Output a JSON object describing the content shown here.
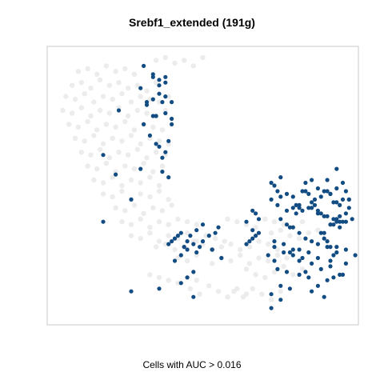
{
  "chart_data": {
    "type": "scatter",
    "title": "Srebf1_extended (191g)",
    "xlabel": "Cells with AUC > 0.016",
    "ylabel": "",
    "xlim": [
      0,
      100
    ],
    "ylim": [
      0,
      100
    ],
    "grid": false,
    "legend": "none",
    "colors": {
      "background_cells": "#e9e9e9",
      "highlighted_cells": "#124c82",
      "frame": "#c9c9c9"
    },
    "series": [
      {
        "name": "",
        "role": "background",
        "x": [
          10,
          13,
          16,
          19,
          22,
          25,
          28,
          8,
          11,
          14,
          17,
          20,
          23,
          26,
          29,
          32,
          35,
          6,
          9,
          12,
          15,
          18,
          21,
          24,
          27,
          30,
          33,
          36,
          39,
          5,
          8,
          11,
          14,
          17,
          20,
          23,
          26,
          29,
          32,
          35,
          38,
          7,
          10,
          13,
          16,
          19,
          22,
          25,
          28,
          31,
          34,
          37,
          9,
          12,
          15,
          18,
          21,
          24,
          27,
          30,
          33,
          36,
          39,
          11,
          14,
          17,
          20,
          23,
          26,
          29,
          32,
          35,
          38,
          13,
          16,
          19,
          22,
          25,
          28,
          31,
          34,
          37,
          15,
          18,
          21,
          24,
          27,
          30,
          33,
          36,
          18,
          21,
          24,
          27,
          30,
          33,
          36,
          39,
          22,
          25,
          28,
          31,
          34,
          37,
          40,
          24,
          27,
          30,
          33,
          36,
          39,
          42,
          45,
          48,
          27,
          30,
          33,
          36,
          39,
          42,
          45,
          48,
          51,
          54,
          57,
          35,
          38,
          41,
          44,
          47,
          50,
          53,
          56,
          59,
          62,
          65,
          68,
          71,
          74,
          42,
          45,
          48,
          53,
          56,
          59,
          62,
          65,
          68,
          71,
          74,
          77,
          58,
          61,
          64,
          67,
          70,
          73,
          76,
          79,
          82,
          64,
          67,
          70,
          73,
          76,
          79,
          82,
          72,
          75,
          78,
          81,
          84,
          87,
          60,
          63,
          66,
          69,
          72,
          75,
          33,
          36,
          39,
          42,
          45,
          48,
          46,
          49,
          52,
          55,
          58,
          61,
          64,
          35,
          38,
          41,
          44,
          47,
          50
        ],
        "y": [
          91,
          92,
          90,
          93,
          91,
          92,
          90,
          86,
          87,
          85,
          88,
          86,
          87,
          85,
          86,
          84,
          87,
          82,
          81,
          83,
          80,
          82,
          81,
          83,
          80,
          82,
          81,
          80,
          82,
          77,
          76,
          78,
          75,
          77,
          76,
          78,
          75,
          77,
          76,
          75,
          77,
          72,
          71,
          73,
          70,
          72,
          71,
          73,
          70,
          72,
          71,
          70,
          67,
          66,
          68,
          65,
          67,
          66,
          68,
          65,
          67,
          66,
          65,
          62,
          61,
          63,
          60,
          62,
          61,
          63,
          60,
          62,
          61,
          57,
          56,
          58,
          55,
          57,
          56,
          58,
          55,
          57,
          52,
          51,
          53,
          50,
          52,
          51,
          53,
          50,
          47,
          46,
          48,
          45,
          47,
          46,
          48,
          45,
          42,
          41,
          43,
          40,
          42,
          41,
          43,
          37,
          36,
          38,
          35,
          37,
          36,
          38,
          37,
          36,
          32,
          31,
          33,
          30,
          32,
          31,
          33,
          30,
          32,
          31,
          30,
          28,
          29,
          27,
          28,
          30,
          29,
          27,
          28,
          29,
          27,
          28,
          30,
          29,
          27,
          24,
          23,
          25,
          22,
          24,
          23,
          25,
          22,
          24,
          23,
          25,
          24,
          38,
          37,
          36,
          35,
          38,
          37,
          36,
          35,
          37,
          20,
          18,
          17,
          19,
          21,
          18,
          20,
          33,
          34,
          32,
          31,
          33,
          34,
          12,
          10,
          13,
          11,
          9,
          12,
          18,
          17,
          16,
          15,
          17,
          16,
          13,
          11,
          14,
          12,
          10,
          13,
          11,
          95,
          96,
          94,
          95,
          93,
          96
        ]
      },
      {
        "name": "",
        "role": "highlighted",
        "x": [
          39,
          40,
          41,
          42,
          43,
          44,
          45,
          46,
          41,
          43,
          45,
          47,
          48,
          49,
          50,
          48,
          50,
          52,
          54,
          55,
          56,
          53,
          53,
          43,
          45,
          47,
          27,
          36,
          47,
          30,
          35,
          18,
          37,
          40,
          27,
          22,
          18,
          23,
          30,
          31,
          34,
          38,
          36,
          34,
          36,
          38,
          32,
          34,
          36,
          38,
          40,
          32,
          34,
          38,
          40,
          31,
          33,
          36,
          38,
          35,
          37,
          39,
          37,
          39,
          64,
          65,
          66,
          67,
          66,
          67,
          68,
          64,
          66,
          68,
          75,
          72,
          73,
          74,
          75,
          72,
          74,
          77,
          80,
          78,
          79,
          81,
          83,
          85,
          87,
          89,
          90,
          91,
          92,
          89,
          92,
          93,
          94,
          95,
          96,
          97,
          96,
          90,
          93,
          88,
          91,
          94,
          97,
          85,
          87,
          91,
          93,
          95,
          82,
          84,
          86,
          88,
          90,
          92,
          94,
          96,
          98,
          80,
          82,
          84,
          86,
          88,
          90,
          92,
          94,
          79,
          81,
          83,
          85,
          87,
          89,
          91,
          93,
          95,
          97,
          77,
          79,
          81,
          83,
          85,
          87,
          89,
          91,
          93,
          75,
          77,
          79,
          81,
          83,
          85,
          87,
          89,
          91,
          73,
          76,
          78,
          81,
          84,
          87,
          90,
          93,
          96,
          88,
          91,
          94,
          92,
          95,
          73,
          76,
          79,
          82,
          85,
          74,
          77,
          81,
          84,
          75,
          78,
          72,
          75,
          72,
          90,
          93,
          96,
          99,
          71,
          73
        ],
        "y": [
          29,
          30,
          31,
          32,
          33,
          28,
          30,
          32,
          23,
          25,
          27,
          29,
          26,
          28,
          30,
          34,
          36,
          32,
          33,
          35,
          24,
          27,
          27,
          15,
          17,
          19,
          12,
          13,
          10,
          85,
          75,
          37,
          80,
          72,
          45,
          54,
          61,
          77,
          56,
          93,
          90,
          87,
          86,
          89,
          88,
          89,
          80,
          81,
          83,
          82,
          80,
          79,
          75,
          76,
          74,
          72,
          68,
          64,
          62,
          65,
          60,
          66,
          55,
          53,
          29,
          30,
          31,
          32,
          41,
          40,
          38,
          37,
          34,
          33,
          53,
          51,
          50,
          48,
          46,
          45,
          43,
          41,
          43,
          35,
          27,
          23,
          19,
          12,
          14,
          10,
          16,
          21,
          25,
          33,
          36,
          38,
          35,
          37,
          40,
          45,
          48,
          52,
          56,
          33,
          36,
          39,
          45,
          44,
          41,
          47,
          49,
          51,
          48,
          47,
          43,
          40,
          39,
          38,
          37,
          37,
          38,
          40,
          41,
          42,
          45,
          46,
          48,
          44,
          43,
          42,
          42,
          51,
          52,
          49,
          48,
          47,
          44,
          45,
          42,
          47,
          46,
          43,
          48,
          42,
          40,
          39,
          36,
          37,
          38,
          36,
          35,
          33,
          31,
          30,
          29,
          31,
          28,
          30,
          29,
          26,
          27,
          26,
          24,
          28,
          26,
          22,
          20,
          23,
          18,
          17,
          18,
          28,
          26,
          25,
          24,
          22,
          20,
          19,
          18,
          17,
          14,
          13,
          11,
          9,
          6,
          30,
          28,
          27,
          25,
          25,
          23
        ]
      }
    ]
  }
}
